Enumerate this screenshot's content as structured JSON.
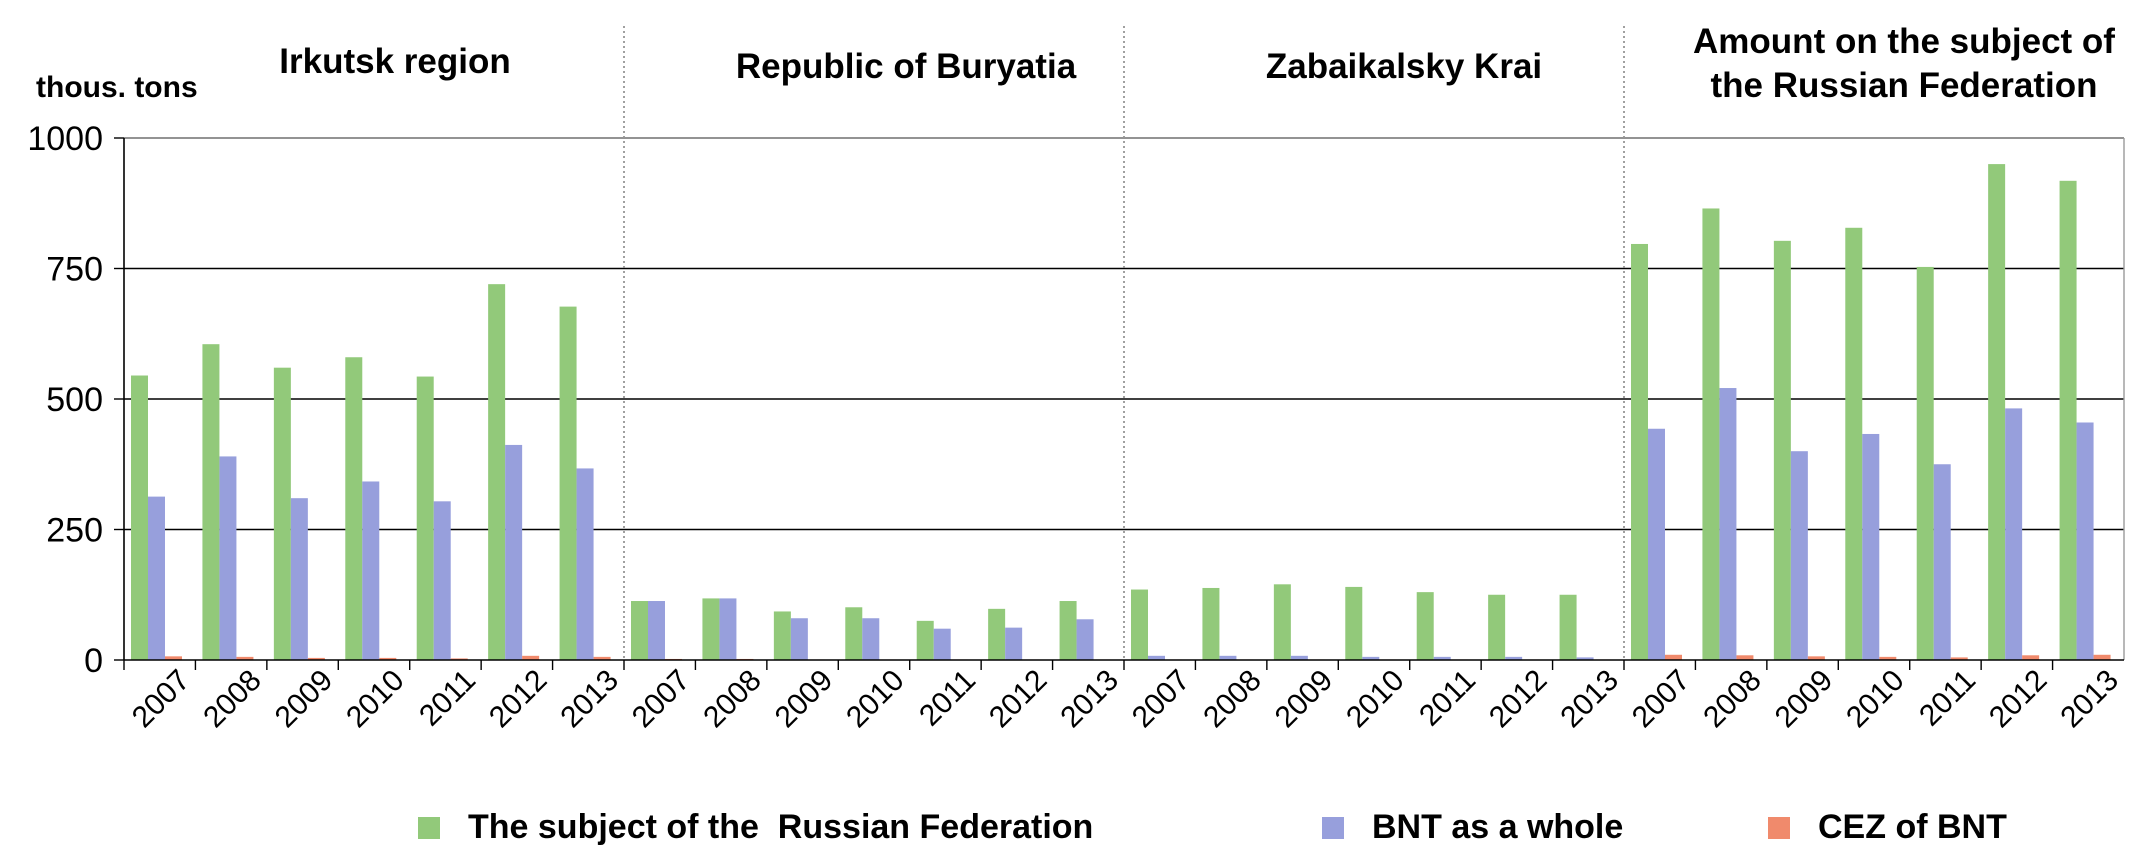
{
  "chart_data": {
    "type": "bar",
    "unit_label": "thous. tons",
    "groups": [
      "Irkutsk region",
      "Republic of Buryatia",
      "Zabaikalsky Krai",
      "Amount on the subject of the Russian Federation"
    ],
    "years": [
      "2007",
      "2008",
      "2009",
      "2010",
      "2011",
      "2012",
      "2013"
    ],
    "ylim": [
      0,
      1000
    ],
    "yticks": [
      0,
      250,
      500,
      750,
      1000
    ],
    "grid": true,
    "legend_position": "bottom",
    "series": [
      {
        "name": "The subject of the  Russian Federation",
        "color": "#92c97a",
        "values": [
          545,
          605,
          560,
          580,
          543,
          720,
          677,
          113,
          118,
          93,
          101,
          75,
          98,
          113,
          135,
          138,
          145,
          140,
          130,
          125,
          125,
          797,
          865,
          803,
          828,
          753,
          950,
          918
        ]
      },
      {
        "name": "BNT as a whole",
        "color": "#979fdc",
        "values": [
          313,
          390,
          310,
          342,
          304,
          412,
          367,
          113,
          118,
          80,
          80,
          60,
          62,
          78,
          8,
          8,
          8,
          6,
          6,
          6,
          5,
          443,
          521,
          400,
          433,
          375,
          482,
          455
        ]
      },
      {
        "name": "CEZ of BNT",
        "color": "#f08a6c",
        "values": [
          7,
          6,
          4,
          4,
          3,
          8,
          6,
          2,
          2,
          1,
          1,
          1,
          1,
          1,
          1,
          1,
          1,
          1,
          1,
          1,
          1,
          10,
          9,
          7,
          6,
          5,
          9,
          10
        ]
      }
    ]
  }
}
